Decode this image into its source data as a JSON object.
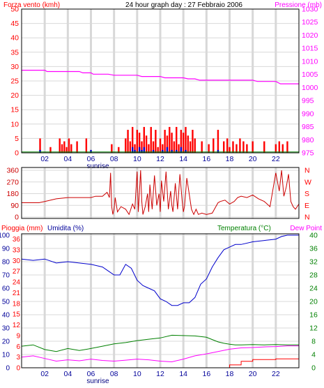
{
  "colors": {
    "red": "#ff0000",
    "darkred": "#cc0000",
    "blue": "#0000cc",
    "darkblue": "#000099",
    "magenta": "#ff00ff",
    "green": "#008000",
    "grid": "#d8d8d8",
    "frame": "#000000"
  },
  "chart_data": [
    {
      "id": "wind-pressure",
      "type": "bar",
      "title": "24 hour graph day : 27 Febbraio 2006",
      "ylabel_left": "Forza vento (kmh)",
      "ylabel_right": "Pressione (mb)",
      "left_ticks": [
        0,
        5,
        10,
        15,
        20,
        25,
        30,
        35,
        40,
        45,
        50
      ],
      "left_range": [
        0,
        50
      ],
      "right_ticks": [
        975,
        980,
        985,
        990,
        995,
        1000,
        1005,
        1010,
        1015,
        1020,
        1025,
        1030
      ],
      "right_range": [
        975,
        1030
      ],
      "x_range": [
        0,
        24
      ],
      "x_ticks": [
        "02",
        "04",
        "06",
        "08",
        "10",
        "12",
        "14",
        "16",
        "18",
        "20",
        "22"
      ],
      "x_tick_hours": [
        2,
        4,
        6,
        8,
        10,
        12,
        14,
        16,
        18,
        20,
        22
      ],
      "annotation": "sunrise",
      "annotation_hour": 6.6,
      "grid": true,
      "pressure": {
        "name": "Pressione",
        "x": [
          0,
          2.0,
          2.2,
          5.0,
          5.3,
          6.0,
          6.2,
          7.5,
          8.0,
          10.0,
          10.4,
          12.0,
          12.4,
          14.0,
          14.4,
          15.0,
          15.4,
          20.0,
          20.4,
          22.0,
          22.4,
          24
        ],
        "y": [
          1006.6,
          1006.6,
          1006.1,
          1006.1,
          1005.6,
          1005.6,
          1005.1,
          1005.1,
          1004.7,
          1004.7,
          1004.2,
          1004.2,
          1003.7,
          1003.7,
          1003.3,
          1003.3,
          1002.8,
          1002.8,
          1002.3,
          1002.3,
          1001.4,
          1001.4
        ]
      },
      "wind_gust": {
        "name": "Forza vento",
        "x": [
          1.6,
          2.5,
          3.3,
          3.5,
          3.7,
          3.9,
          4.1,
          4.3,
          4.8,
          5.6,
          7.8,
          8.4,
          9.0,
          9.2,
          9.4,
          9.6,
          9.8,
          10.0,
          10.2,
          10.4,
          10.6,
          10.8,
          11.0,
          11.2,
          11.4,
          11.6,
          11.8,
          12.0,
          12.2,
          12.4,
          12.6,
          12.8,
          13.0,
          13.2,
          13.4,
          13.6,
          13.8,
          14.0,
          14.2,
          14.4,
          14.6,
          14.8,
          15.0,
          15.6,
          16.2,
          16.6,
          17.0,
          17.5,
          17.8,
          18.0,
          18.3,
          18.6,
          18.9,
          19.2,
          19.5,
          20.0,
          21.0,
          22.0,
          22.3,
          22.6,
          23.0
        ],
        "y": [
          5,
          2,
          5,
          3,
          4,
          2,
          5,
          3,
          4,
          5,
          3,
          2,
          5,
          8,
          4,
          9,
          3,
          8,
          7,
          4,
          9,
          6,
          3,
          9,
          4,
          8,
          2,
          5,
          3,
          8,
          6,
          9,
          7,
          4,
          9,
          3,
          8,
          7,
          9,
          6,
          4,
          8,
          5,
          4,
          3,
          5,
          8,
          4,
          5,
          2,
          4,
          3,
          5,
          4,
          3,
          4,
          4,
          3,
          4,
          3,
          4
        ]
      },
      "wind_avg": {
        "name": "Forza vento media",
        "x": [
          1.6,
          6.0,
          9.6,
          9.8,
          10.2,
          10.4,
          10.6,
          11.4,
          12.2,
          12.6,
          13.0,
          13.4,
          13.8,
          14.2,
          17.0
        ],
        "y": [
          1,
          1,
          2,
          1,
          2,
          1,
          2,
          1,
          1,
          2,
          1,
          1,
          2,
          1,
          1
        ]
      },
      "wind_base": {
        "name": "Forza vento minima",
        "x": [
          0,
          24
        ],
        "y": [
          0.3,
          0.3
        ]
      }
    },
    {
      "id": "wind-direction",
      "type": "line",
      "left_ticks": [
        0,
        90,
        180,
        270,
        360
      ],
      "left_range": [
        0,
        360
      ],
      "right_labels": [
        "N",
        "W",
        "S",
        "E",
        "N"
      ],
      "x_range": [
        0,
        24
      ],
      "grid": true,
      "direction": {
        "name": "Direzione vento",
        "x": [
          0,
          1.5,
          2.0,
          3.0,
          4.0,
          5.0,
          6.0,
          6.4,
          7.0,
          7.4,
          7.6,
          7.7,
          7.8,
          7.9,
          8.0,
          8.1,
          8.3,
          8.6,
          9.0,
          9.3,
          9.6,
          9.8,
          10.0,
          10.1,
          10.2,
          10.3,
          10.4,
          10.5,
          10.7,
          10.9,
          11.0,
          11.1,
          11.3,
          11.5,
          11.7,
          11.9,
          12.0,
          12.1,
          12.3,
          12.5,
          12.7,
          12.9,
          13.0,
          13.1,
          13.3,
          13.5,
          13.7,
          13.9,
          14.0,
          14.1,
          14.3,
          14.5,
          14.7,
          14.9,
          15.0,
          15.1,
          15.3,
          15.6,
          16.0,
          16.5,
          17.0,
          17.2,
          17.6,
          18.0,
          18.4,
          18.7,
          19.0,
          19.5,
          20.0,
          20.5,
          21.0,
          21.5,
          22.0,
          22.3,
          22.5,
          22.7,
          22.9,
          23.1,
          23.3,
          23.5,
          23.7,
          24
        ],
        "y": [
          110,
          110,
          120,
          140,
          150,
          150,
          150,
          160,
          160,
          190,
          150,
          340,
          80,
          20,
          60,
          150,
          40,
          80,
          60,
          20,
          100,
          60,
          350,
          40,
          200,
          360,
          120,
          20,
          80,
          180,
          40,
          250,
          60,
          320,
          90,
          180,
          40,
          280,
          120,
          350,
          60,
          200,
          90,
          40,
          260,
          60,
          330,
          120,
          40,
          80,
          300,
          180,
          60,
          20,
          40,
          60,
          20,
          30,
          20,
          30,
          110,
          120,
          130,
          100,
          120,
          150,
          160,
          150,
          170,
          140,
          120,
          80,
          340,
          200,
          360,
          160,
          230,
          330,
          120,
          80,
          60,
          100
        ]
      }
    },
    {
      "id": "rain-humidity-temp",
      "type": "line",
      "ylabel_left_1": "Pioggia (mm)",
      "ylabel_left_2": "Umidita (%)",
      "ylabel_right_1": "Temperatura (°C)",
      "ylabel_right_2": "Dew Point",
      "rain_ticks": [
        0,
        3,
        6,
        9,
        12,
        15,
        18,
        21,
        24,
        27,
        30,
        33,
        36
      ],
      "humidity_ticks": [
        0,
        10,
        20,
        30,
        40,
        50,
        60,
        70,
        80,
        90,
        100
      ],
      "temp_ticks": [
        0,
        4,
        8,
        12,
        16,
        20,
        24,
        28,
        32,
        36,
        40
      ],
      "x_range": [
        0,
        24
      ],
      "x_ticks": [
        "02",
        "04",
        "06",
        "08",
        "10",
        "12",
        "14",
        "16",
        "18",
        "20",
        "22"
      ],
      "x_tick_hours": [
        2,
        4,
        6,
        8,
        10,
        12,
        14,
        16,
        18,
        20,
        22
      ],
      "annotation": "sunrise",
      "annotation_hour": 6.6,
      "grid": true,
      "humidity": {
        "name": "Umidita",
        "x": [
          0,
          1.0,
          2.0,
          3.0,
          4.0,
          5.0,
          6.0,
          7.0,
          7.5,
          8.0,
          8.5,
          9.0,
          9.5,
          10.0,
          10.5,
          11.0,
          11.5,
          12.0,
          12.5,
          13.0,
          13.5,
          14.0,
          14.5,
          15.0,
          15.5,
          16.0,
          16.5,
          17.0,
          17.5,
          18.0,
          18.5,
          19.0,
          20.0,
          21.0,
          22.0,
          22.5,
          23.0,
          24
        ],
        "y": [
          82,
          81,
          82,
          79,
          80,
          79,
          78,
          76,
          73,
          70,
          70,
          78,
          75,
          66,
          62,
          60,
          58,
          52,
          50,
          47,
          47,
          49,
          49,
          53,
          63,
          67,
          76,
          83,
          89,
          91,
          93,
          93,
          95,
          96,
          97,
          99,
          100,
          100
        ]
      },
      "temperature": {
        "name": "Temperatura",
        "x": [
          0,
          1.0,
          2.0,
          3.0,
          4.0,
          5.0,
          6.0,
          7.0,
          8.0,
          9.0,
          10.0,
          11.0,
          12.0,
          13.0,
          14.0,
          15.0,
          16.0,
          16.5,
          17.0,
          17.5,
          18.0,
          18.5,
          19.0,
          20.0,
          21.0,
          22.0,
          23.0,
          24
        ],
        "y": [
          6.5,
          6.9,
          5.5,
          4.9,
          5.8,
          5.2,
          5.8,
          6.5,
          7.2,
          7.6,
          8.2,
          8.6,
          9.0,
          9.8,
          9.7,
          9.6,
          9.2,
          8.5,
          7.8,
          7.4,
          7.1,
          6.9,
          6.9,
          7.0,
          6.9,
          7.0,
          6.9,
          6.9
        ]
      },
      "dewpoint": {
        "name": "Dew Point",
        "x": [
          0,
          1.0,
          2.0,
          3.0,
          4.0,
          5.0,
          6.0,
          7.0,
          8.0,
          9.0,
          10.0,
          11.0,
          12.0,
          13.0,
          14.0,
          15.0,
          16.0,
          17.0,
          18.0,
          19.0,
          20.0,
          21.0,
          22.0,
          23.0,
          24
        ],
        "y": [
          3.2,
          3.6,
          2.8,
          2.0,
          2.4,
          2.1,
          2.6,
          2.2,
          2.0,
          2.3,
          2.6,
          2.4,
          2.0,
          1.8,
          2.6,
          3.6,
          4.2,
          4.9,
          5.6,
          6.0,
          6.1,
          6.3,
          6.4,
          6.6,
          6.6
        ]
      },
      "rain": {
        "name": "Pioggia",
        "x": [
          0,
          15.0,
          17.0,
          18.0,
          19.0,
          20.0,
          22.0,
          23.0,
          24
        ],
        "y": [
          0,
          0,
          0,
          0.8,
          1.8,
          2.3,
          2.5,
          2.5,
          2.5
        ]
      }
    }
  ]
}
